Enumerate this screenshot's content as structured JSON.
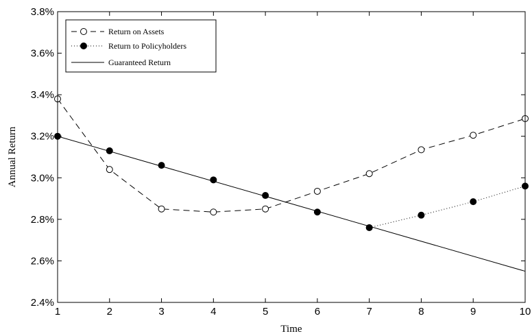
{
  "chart_data": {
    "type": "line",
    "xlabel": "Time",
    "ylabel": "Annual Return",
    "xlim": [
      1,
      10
    ],
    "ylim": [
      2.4,
      3.8
    ],
    "x_ticks": [
      "1",
      "2",
      "3",
      "4",
      "5",
      "6",
      "7",
      "8",
      "9",
      "10"
    ],
    "y_ticks": [
      "2.4%",
      "2.6%",
      "2.8%",
      "3.0%",
      "3.2%",
      "3.4%",
      "3.6%",
      "3.8%"
    ],
    "grid": false,
    "legend_position": "top-left",
    "series": [
      {
        "name": "Return on Assets",
        "style": "dashed",
        "marker": "open-circle",
        "x": [
          1,
          2,
          3,
          4,
          5,
          6,
          7,
          8,
          9,
          10
        ],
        "y": [
          3.38,
          3.04,
          2.85,
          2.835,
          2.85,
          2.935,
          3.02,
          3.135,
          3.205,
          3.285
        ]
      },
      {
        "name": "Return to Policyholders",
        "style": "dotted",
        "marker": "filled-circle",
        "x": [
          1,
          2,
          3,
          4,
          5,
          6,
          7,
          8,
          9,
          10
        ],
        "y": [
          3.2,
          3.13,
          3.06,
          2.99,
          2.915,
          2.835,
          2.76,
          2.82,
          2.885,
          2.96
        ]
      },
      {
        "name": "Guaranteed Return",
        "style": "solid",
        "marker": "none",
        "x": [
          1,
          10
        ],
        "y": [
          3.2,
          2.55
        ]
      }
    ]
  }
}
